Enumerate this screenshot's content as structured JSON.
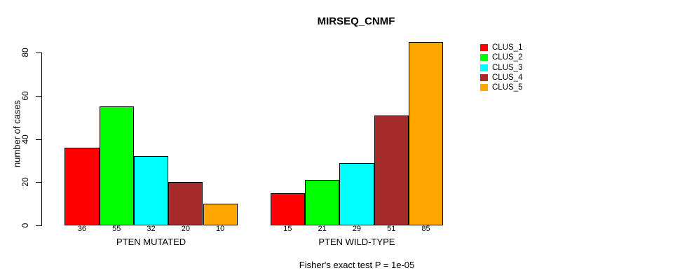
{
  "title": "MIRSEQ_CNMF",
  "y_axis": {
    "label": "number of cases",
    "ticks": [
      0,
      20,
      40,
      60,
      80
    ]
  },
  "footer": "Fisher's exact test P = 1e-05",
  "chart_data": {
    "type": "bar",
    "title": "MIRSEQ_CNMF",
    "ylabel": "number of cases",
    "xlabel": "",
    "ylim": [
      0,
      85
    ],
    "yticks": [
      0,
      20,
      40,
      60,
      80
    ],
    "grid": false,
    "legend_position": "right",
    "series": [
      "CLUS_1",
      "CLUS_2",
      "CLUS_3",
      "CLUS_4",
      "CLUS_5"
    ],
    "colors": [
      "#FF0000",
      "#00FF00",
      "#00FFFF",
      "#A52A2A",
      "#FFA500"
    ],
    "categories": [
      "PTEN MUTATED",
      "PTEN WILD-TYPE"
    ],
    "groups": [
      {
        "category": "PTEN MUTATED",
        "values": [
          36,
          55,
          32,
          20,
          10
        ]
      },
      {
        "category": "PTEN WILD-TYPE",
        "values": [
          15,
          21,
          29,
          51,
          85
        ]
      }
    ],
    "annotation": "Fisher's exact test P = 1e-05"
  }
}
